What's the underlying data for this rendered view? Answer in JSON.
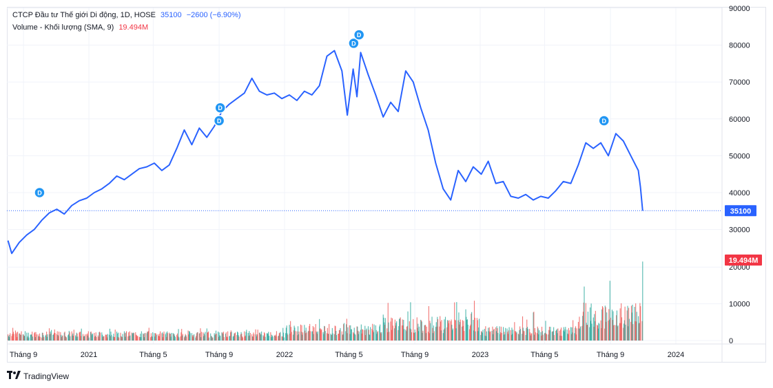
{
  "legend": {
    "symbol": "CTCP Đầu tư Thế giới Di động, 1D, HOSE",
    "last_price": "35100",
    "change": "−2600 (−6.90%)",
    "volume_label": "Volume - Khối lượng (SMA, 9)",
    "volume_value": "19.494M"
  },
  "branding": {
    "logo_text": "TradingView"
  },
  "colors": {
    "price_line": "#2962ff",
    "volume_up": "#26a69a",
    "volume_down": "#ef5350",
    "badge": "#2196f3",
    "volume_badge": "#f23645"
  },
  "chart_data": {
    "type": "line",
    "price_axis": {
      "min": 20000,
      "max": 90000,
      "ticks": [
        "90000",
        "80000",
        "70000",
        "60000",
        "50000",
        "40000",
        "30000"
      ]
    },
    "volume_axis": {
      "ticks": [
        "20000",
        "10000",
        "0"
      ],
      "unit": "K"
    },
    "x_ticks": [
      "Tháng 9",
      "2021",
      "Tháng 5",
      "Tháng 9",
      "2022",
      "Tháng 5",
      "Tháng 9",
      "2023",
      "Tháng 5",
      "Tháng 9",
      "2024"
    ],
    "x_tick_dates": [
      "2020-09-01",
      "2021-01-01",
      "2021-05-01",
      "2021-09-01",
      "2022-01-01",
      "2022-05-01",
      "2022-09-01",
      "2023-01-01",
      "2023-05-01",
      "2023-09-01",
      "2024-01-01"
    ],
    "series": [
      {
        "values": [
          [
            "2020-08-03",
            27000
          ],
          [
            "2020-08-10",
            23500
          ],
          [
            "2020-08-24",
            26500
          ],
          [
            "2020-09-07",
            28500
          ],
          [
            "2020-09-21",
            30000
          ],
          [
            "2020-10-05",
            32500
          ],
          [
            "2020-10-19",
            34500
          ],
          [
            "2020-11-02",
            35500
          ],
          [
            "2020-11-16",
            34200
          ],
          [
            "2020-11-30",
            36500
          ],
          [
            "2020-12-14",
            37800
          ],
          [
            "2020-12-28",
            38500
          ],
          [
            "2021-01-11",
            40000
          ],
          [
            "2021-01-25",
            41000
          ],
          [
            "2021-02-08",
            42500
          ],
          [
            "2021-02-22",
            44500
          ],
          [
            "2021-03-08",
            43500
          ],
          [
            "2021-03-22",
            45000
          ],
          [
            "2021-04-05",
            46500
          ],
          [
            "2021-04-19",
            47000
          ],
          [
            "2021-05-03",
            48000
          ],
          [
            "2021-05-17",
            46000
          ],
          [
            "2021-05-31",
            47500
          ],
          [
            "2021-06-14",
            52000
          ],
          [
            "2021-06-28",
            57000
          ],
          [
            "2021-07-12",
            53000
          ],
          [
            "2021-07-26",
            57500
          ],
          [
            "2021-08-09",
            55000
          ],
          [
            "2021-08-23",
            58000
          ],
          [
            "2021-09-06",
            62000
          ],
          [
            "2021-09-20",
            64000
          ],
          [
            "2021-10-04",
            65500
          ],
          [
            "2021-10-18",
            67000
          ],
          [
            "2021-11-01",
            71000
          ],
          [
            "2021-11-15",
            67500
          ],
          [
            "2021-11-29",
            66500
          ],
          [
            "2021-12-13",
            67000
          ],
          [
            "2021-12-27",
            65500
          ],
          [
            "2022-01-10",
            66500
          ],
          [
            "2022-01-24",
            65000
          ],
          [
            "2022-02-07",
            67500
          ],
          [
            "2022-02-21",
            66500
          ],
          [
            "2022-03-07",
            69000
          ],
          [
            "2022-03-21",
            77000
          ],
          [
            "2022-04-04",
            78500
          ],
          [
            "2022-04-18",
            73000
          ],
          [
            "2022-04-28",
            61000
          ],
          [
            "2022-05-09",
            73500
          ],
          [
            "2022-05-16",
            66000
          ],
          [
            "2022-05-23",
            78000
          ],
          [
            "2022-06-06",
            72000
          ],
          [
            "2022-06-20",
            66500
          ],
          [
            "2022-07-04",
            60500
          ],
          [
            "2022-07-18",
            64500
          ],
          [
            "2022-08-01",
            62000
          ],
          [
            "2022-08-15",
            73000
          ],
          [
            "2022-08-29",
            70000
          ],
          [
            "2022-09-12",
            63000
          ],
          [
            "2022-09-26",
            57000
          ],
          [
            "2022-10-10",
            48000
          ],
          [
            "2022-10-24",
            41000
          ],
          [
            "2022-11-07",
            38000
          ],
          [
            "2022-11-21",
            46000
          ],
          [
            "2022-12-05",
            43000
          ],
          [
            "2022-12-19",
            47000
          ],
          [
            "2023-01-03",
            45000
          ],
          [
            "2023-01-16",
            48500
          ],
          [
            "2023-01-30",
            42500
          ],
          [
            "2023-02-13",
            43000
          ],
          [
            "2023-02-27",
            39000
          ],
          [
            "2023-03-13",
            38500
          ],
          [
            "2023-03-27",
            39500
          ],
          [
            "2023-04-10",
            38000
          ],
          [
            "2023-04-24",
            39000
          ],
          [
            "2023-05-08",
            38500
          ],
          [
            "2023-05-22",
            40500
          ],
          [
            "2023-06-05",
            43000
          ],
          [
            "2023-06-19",
            42500
          ],
          [
            "2023-07-03",
            47500
          ],
          [
            "2023-07-17",
            53500
          ],
          [
            "2023-07-31",
            52000
          ],
          [
            "2023-08-14",
            53500
          ],
          [
            "2023-08-28",
            50000
          ],
          [
            "2023-09-11",
            56000
          ],
          [
            "2023-09-25",
            54000
          ],
          [
            "2023-10-09",
            50000
          ],
          [
            "2023-10-23",
            46000
          ],
          [
            "2023-10-27",
            41500
          ],
          [
            "2023-10-31",
            35100
          ]
        ]
      }
    ],
    "volume_daily_scale_k": {
      "segments": [
        {
          "from": "2020-08-01",
          "to": "2021-12-31",
          "typical": 2000,
          "peak": 3500
        },
        {
          "from": "2022-01-01",
          "to": "2022-06-30",
          "typical": 3500,
          "peak": 6000
        },
        {
          "from": "2022-07-01",
          "to": "2022-12-31",
          "typical": 5000,
          "peak": 11000
        },
        {
          "from": "2023-01-01",
          "to": "2023-06-30",
          "typical": 3000,
          "peak": 8000
        },
        {
          "from": "2023-07-01",
          "to": "2023-10-31",
          "typical": 8000,
          "peak": 21000
        }
      ]
    },
    "dividend_markers": [
      "D",
      "D",
      "D",
      "D",
      "D",
      "D"
    ],
    "dividend_dates": [
      "2020-10-01",
      "2021-09-01",
      "2021-09-03",
      "2022-05-10",
      "2022-05-20",
      "2023-08-20"
    ],
    "dividend_prices": [
      40000,
      59500,
      63000,
      80500,
      82800,
      59500
    ],
    "last_price_label": "35100",
    "last_volume_label": "19.494M"
  }
}
